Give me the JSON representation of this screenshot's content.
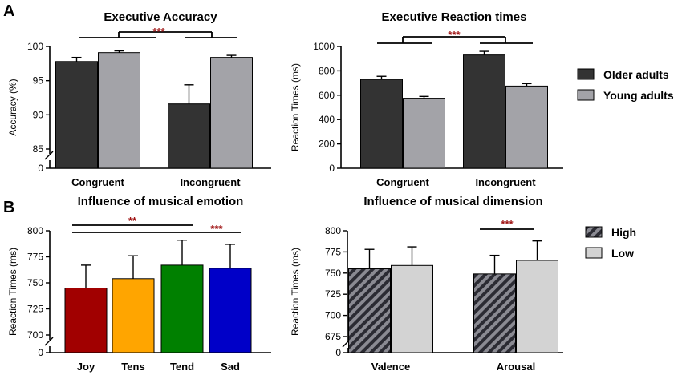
{
  "panels": {
    "a": "A",
    "b": "B"
  },
  "chart_data": [
    {
      "type": "bar",
      "id": "accuracy",
      "title": "Executive Accuracy",
      "ylabel": "Accuracy (%)",
      "categories": [
        "Congruent",
        "Incongruent"
      ],
      "series": [
        {
          "name": "Older adults",
          "color": "#333333",
          "values": [
            97.8,
            91.6
          ],
          "errors": [
            0.6,
            2.8
          ]
        },
        {
          "name": "Young adults",
          "color": "#a3a3a8",
          "values": [
            99.1,
            98.4
          ],
          "errors": [
            0.25,
            0.3
          ]
        }
      ],
      "axis_break": true,
      "ylim": [
        85,
        100
      ],
      "yticks": [
        0,
        85,
        90,
        95,
        100
      ],
      "significance": [
        {
          "label": "***",
          "between": [
            "Congruent",
            "Incongruent"
          ]
        }
      ]
    },
    {
      "type": "bar",
      "id": "exec-rt",
      "title": "Executive Reaction times",
      "ylabel": "Reaction Times (ms)",
      "categories": [
        "Congruent",
        "Incongruent"
      ],
      "series": [
        {
          "name": "Older adults",
          "color": "#333333",
          "values": [
            730,
            930
          ],
          "errors": [
            25,
            30
          ]
        },
        {
          "name": "Young adults",
          "color": "#a3a3a8",
          "values": [
            575,
            675
          ],
          "errors": [
            15,
            20
          ]
        }
      ],
      "ylim": [
        0,
        1000
      ],
      "yticks": [
        0,
        200,
        400,
        600,
        800,
        1000
      ],
      "significance": [
        {
          "label": "***",
          "between": [
            "Congruent",
            "Incongruent"
          ]
        }
      ]
    },
    {
      "type": "bar",
      "id": "emotion",
      "title": "Influence of musical emotion",
      "ylabel": "Reaction Times (ms)",
      "categories": [
        "Joy",
        "Tens",
        "Tend",
        "Sad"
      ],
      "colors": [
        "#a10000",
        "#ffa500",
        "#008000",
        "#0000c8"
      ],
      "values": [
        745,
        754,
        767,
        764
      ],
      "errors": [
        22,
        22,
        24,
        23
      ],
      "axis_break": true,
      "ylim": [
        700,
        800
      ],
      "yticks": [
        0,
        700,
        725,
        750,
        775,
        800
      ],
      "significance": [
        {
          "label": "**",
          "between": [
            "Joy",
            "Tend"
          ]
        },
        {
          "label": "***",
          "between": [
            "Joy",
            "Sad"
          ]
        }
      ]
    },
    {
      "type": "bar",
      "id": "dimension",
      "title": "Influence of musical dimension",
      "ylabel": "Reaction Times (ms)",
      "categories": [
        "Valence",
        "Arousal"
      ],
      "series": [
        {
          "name": "High",
          "color": "#555560",
          "pattern": "hatched",
          "values": [
            755,
            749
          ],
          "errors": [
            23,
            22
          ]
        },
        {
          "name": "Low",
          "color": "#d3d3d3",
          "values": [
            759,
            765
          ],
          "errors": [
            22,
            23
          ]
        }
      ],
      "axis_break": true,
      "ylim": [
        675,
        800
      ],
      "yticks": [
        0,
        675,
        700,
        725,
        750,
        775,
        800
      ],
      "significance": [
        {
          "label": "***",
          "between": [
            "High",
            "Low"
          ],
          "category": "Arousal"
        }
      ]
    }
  ]
}
